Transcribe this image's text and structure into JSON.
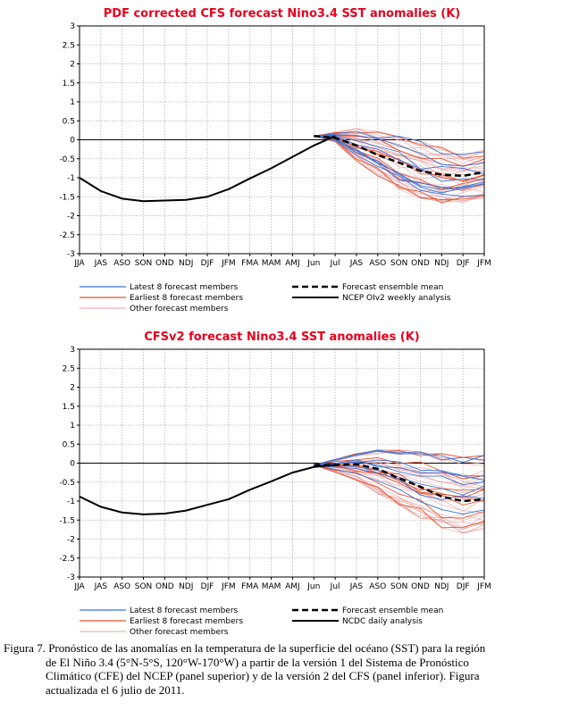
{
  "chart_data": [
    {
      "type": "line",
      "title": "PDF corrected CFS forecast Nino3.4 SST anomalies (K)",
      "x_ticks": [
        "JJA",
        "JAS",
        "ASO",
        "SON",
        "OND",
        "NDJ",
        "DJF",
        "JFM",
        "FMA",
        "MAM",
        "AMJ",
        "Jun",
        "Jul",
        "JAS",
        "ASO",
        "SON",
        "OND",
        "NDJ",
        "DJF",
        "JFM"
      ],
      "y_ticks": [
        "3",
        "2.5",
        "2",
        "1.5",
        "1",
        "0.5",
        "0",
        "-0.5",
        "-1",
        "-1.5",
        "-2",
        "-2.5",
        "-3"
      ],
      "ylim": [
        -3,
        3
      ],
      "grid": true,
      "legend": {
        "latest": "Latest 8 forecast members",
        "earliest": "Earliest 8 forecast members",
        "other": "Other forecast members",
        "mean": "Forecast ensemble mean",
        "analysis": "NCEP OIv2 weekly analysis"
      },
      "colors": {
        "latest": "#3a72d6",
        "earliest": "#e8502a",
        "other": "#e8a0a0",
        "mean": "#000000",
        "analysis": "#000000",
        "title": "#e8001c"
      },
      "analysis_values": [
        -1.0,
        -1.35,
        -1.55,
        -1.62,
        -1.6,
        -1.58,
        -1.5,
        -1.3,
        -1.02,
        -0.75,
        -0.45,
        -0.15,
        0.1
      ],
      "mean_values": [
        0.1,
        0.05,
        -0.15,
        -0.4,
        -0.6,
        -0.82,
        -0.92,
        -0.95,
        -0.85
      ],
      "spread": {
        "start": 0.1,
        "upper": [
          0.2,
          0.3,
          0.25,
          0.15,
          0.0,
          -0.2,
          -0.3,
          -0.25
        ],
        "lower": [
          -0.05,
          -0.55,
          -0.95,
          -1.3,
          -1.6,
          -1.75,
          -1.7,
          -1.6
        ]
      }
    },
    {
      "type": "line",
      "title": "CFSv2 forecast Nino3.4 SST anomalies (K)",
      "x_ticks": [
        "JJA",
        "JAS",
        "ASO",
        "SON",
        "OND",
        "NDJ",
        "DJF",
        "JFM",
        "FMA",
        "MAM",
        "AMJ",
        "Jun",
        "Jul",
        "JAS",
        "ASO",
        "SON",
        "OND",
        "NDJ",
        "DJF",
        "JFM"
      ],
      "y_ticks": [
        "3",
        "2.5",
        "2",
        "1.5",
        "1",
        "0.5",
        "0",
        "-0.5",
        "-1",
        "-1.5",
        "-2",
        "-2.5",
        "-3"
      ],
      "ylim": [
        -3,
        3
      ],
      "grid": true,
      "legend": {
        "latest": "Latest 8 forecast members",
        "earliest": "Earliest 8 forecast members",
        "other": "Other forecast members",
        "mean": "Forecast ensemble mean",
        "analysis": "NCDC daily analysis"
      },
      "colors": {
        "latest": "#3a72d6",
        "earliest": "#e8502a",
        "other": "#e8a0a0",
        "mean": "#000000",
        "analysis": "#000000",
        "title": "#e8001c"
      },
      "analysis_values": [
        -0.88,
        -1.15,
        -1.3,
        -1.35,
        -1.33,
        -1.25,
        -1.1,
        -0.95,
        -0.7,
        -0.48,
        -0.25,
        -0.1,
        -0.05
      ],
      "mean_values": [
        -0.05,
        -0.05,
        -0.03,
        -0.15,
        -0.4,
        -0.62,
        -0.88,
        -1.0,
        -0.95
      ],
      "spread": {
        "start": -0.05,
        "upper": [
          0.1,
          0.25,
          0.35,
          0.35,
          0.3,
          0.25,
          0.15,
          0.2
        ],
        "lower": [
          -0.25,
          -0.45,
          -0.8,
          -1.1,
          -1.45,
          -1.7,
          -1.85,
          -1.75
        ]
      }
    }
  ],
  "caption": {
    "line1": "Figura 7. Pronóstico de las anomalías en la temperatura de la superficie del océano (SST) para la región",
    "line2": "de El Niño 3.4 (5°N-5°S, 120°W-170°W) a partir de la versión 1 del Sistema de Pronóstico",
    "line3": "Climático (CFE) del NCEP (panel superior) y de la versión 2 del CFS (panel inferior).  Figura",
    "line4": "actualizada el 6 julio de 2011."
  }
}
